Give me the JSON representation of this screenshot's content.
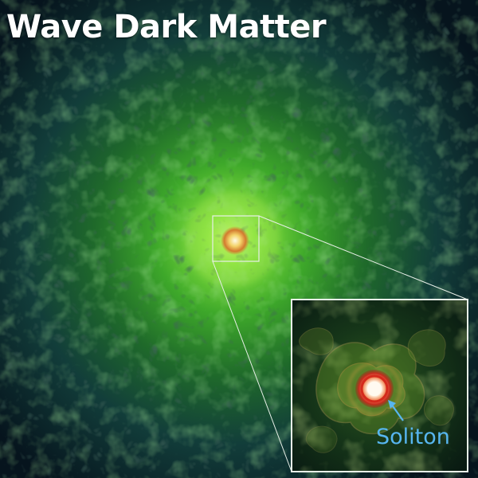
{
  "image": {
    "title": "Wave Dark Matter",
    "inset_label": "Soliton"
  },
  "colors": {
    "background": "#05121a",
    "halo_green": "#5fd636",
    "halo_yellow": "#d8e84a",
    "core_red": "#e0452a",
    "core_white": "#fff3df",
    "label_blue": "#57b6f0",
    "frame_white": "#e8efe8"
  }
}
